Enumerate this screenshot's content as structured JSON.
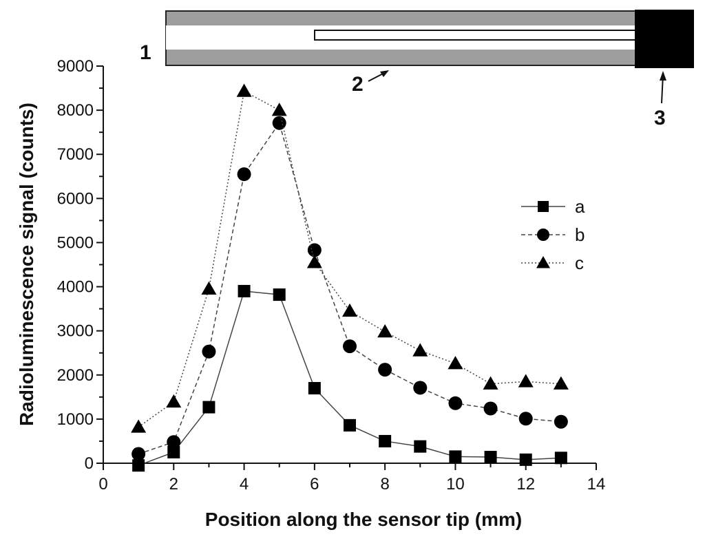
{
  "diagram": {
    "labels": [
      "1",
      "2",
      "3"
    ],
    "colors": {
      "jacket": "#9e9e9e",
      "core": "#ffffff",
      "block": "#000000"
    }
  },
  "chart_data": {
    "type": "scatter",
    "title": "",
    "xlabel": "Position along the sensor tip (mm)",
    "ylabel": "Radioluminescence signal (counts)",
    "xlim": [
      0,
      14
    ],
    "ylim": [
      0,
      9000
    ],
    "x_ticks": [
      "0",
      "2",
      "4",
      "6",
      "8",
      "10",
      "12",
      "14"
    ],
    "y_ticks": [
      "0",
      "1000",
      "2000",
      "3000",
      "4000",
      "5000",
      "6000",
      "7000",
      "8000",
      "9000"
    ],
    "x_minor_step": 1,
    "y_minor_step": 500,
    "grid": false,
    "legend_position": "right",
    "series": [
      {
        "name": "a",
        "marker": "square",
        "line": "solid",
        "x": [
          1,
          2,
          3,
          4,
          5,
          6,
          7,
          8,
          9,
          10,
          11,
          12,
          13
        ],
        "y": [
          -50,
          250,
          1270,
          3900,
          3820,
          1700,
          860,
          500,
          380,
          150,
          140,
          80,
          120
        ]
      },
      {
        "name": "b",
        "marker": "circle",
        "line": "dashed",
        "x": [
          1,
          2,
          3,
          4,
          5,
          6,
          7,
          8,
          9,
          10,
          11,
          12,
          13
        ],
        "y": [
          210,
          480,
          2530,
          6550,
          7710,
          4830,
          2650,
          2120,
          1710,
          1360,
          1240,
          1010,
          940
        ]
      },
      {
        "name": "c",
        "marker": "triangle",
        "line": "dotted",
        "x": [
          1,
          2,
          3,
          4,
          5,
          6,
          7,
          8,
          9,
          10,
          11,
          12,
          13
        ],
        "y": [
          820,
          1390,
          3950,
          8430,
          8000,
          4550,
          3450,
          2980,
          2550,
          2260,
          1800,
          1850,
          1800
        ]
      }
    ]
  }
}
